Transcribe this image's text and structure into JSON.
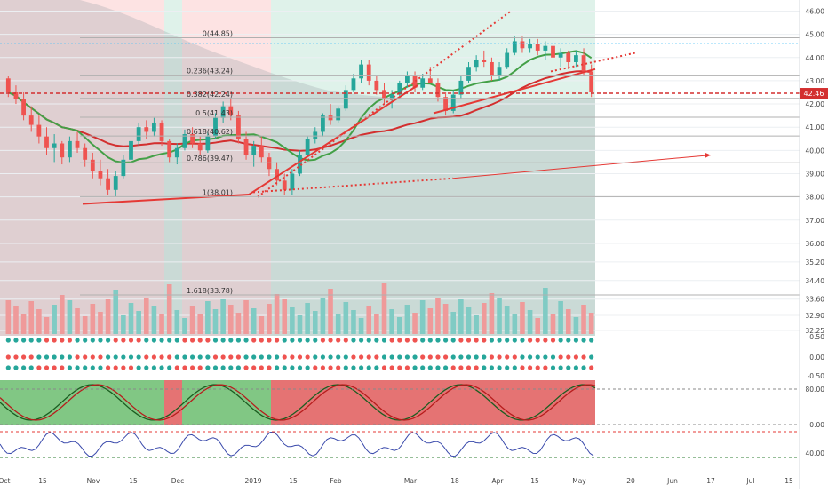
{
  "chart_data": {
    "type": "candlestick",
    "price_axis": {
      "ticks": [
        "46.00",
        "45.00",
        "44.00",
        "43.00",
        "42.00",
        "41.00",
        "40.00",
        "39.00",
        "38.00",
        "37.00",
        "36.00",
        "35.20",
        "34.40",
        "33.60",
        "32.90",
        "32.25"
      ],
      "last_price": "42.46",
      "last_price_value": 42.46,
      "ylim": [
        32.25,
        46.4
      ]
    },
    "time_axis": {
      "labels": [
        "Oct",
        "15",
        "Nov",
        "15",
        "Dec",
        "2019",
        "15",
        "Feb",
        "Mar",
        "18",
        "Apr",
        "15",
        "May",
        "20",
        "Jun",
        "17",
        "Jul",
        "15"
      ]
    },
    "macd_axis": {
      "ticks": [
        "0.50",
        "0.00",
        "-0.50"
      ]
    },
    "stoch_axis": {
      "ticks": [
        "80.00",
        "0.00"
      ]
    },
    "rsi_axis": {
      "ticks": [
        "40.00"
      ]
    },
    "fib_levels": [
      {
        "label": "0(44.85)",
        "value": 44.85
      },
      {
        "label": "0.236(43.24)",
        "value": 43.24
      },
      {
        "label": "0.382(42.24)",
        "value": 42.24
      },
      {
        "label": "0.5(41.43)",
        "value": 41.43
      },
      {
        "label": "0.618(40.62)",
        "value": 40.62
      },
      {
        "label": "0.786(39.47)",
        "value": 39.47
      },
      {
        "label": "1(38.01)",
        "value": 38.01
      },
      {
        "label": "1.618(33.78)",
        "value": 33.78
      }
    ],
    "candles": [
      [
        43.1,
        43.2,
        42.3,
        42.5
      ],
      [
        42.5,
        42.8,
        42.0,
        42.2
      ],
      [
        42.2,
        42.5,
        41.3,
        41.5
      ],
      [
        41.5,
        41.9,
        40.8,
        41.1
      ],
      [
        41.1,
        41.5,
        40.3,
        40.6
      ],
      [
        40.6,
        41.0,
        39.8,
        40.1
      ],
      [
        40.1,
        40.7,
        39.5,
        40.3
      ],
      [
        40.3,
        40.4,
        39.4,
        39.7
      ],
      [
        39.7,
        40.6,
        39.5,
        40.4
      ],
      [
        40.4,
        40.8,
        39.9,
        40.1
      ],
      [
        40.1,
        40.3,
        39.3,
        39.6
      ],
      [
        39.6,
        39.9,
        38.8,
        39.1
      ],
      [
        39.1,
        39.6,
        38.5,
        38.8
      ],
      [
        38.8,
        39.2,
        38.1,
        38.3
      ],
      [
        38.3,
        39.1,
        38.0,
        38.9
      ],
      [
        38.9,
        39.8,
        38.8,
        39.6
      ],
      [
        39.6,
        40.6,
        39.5,
        40.4
      ],
      [
        40.4,
        41.2,
        40.2,
        41.0
      ],
      [
        41.0,
        41.3,
        40.5,
        40.8
      ],
      [
        40.8,
        41.4,
        40.6,
        41.2
      ],
      [
        41.2,
        41.3,
        40.2,
        40.4
      ],
      [
        40.4,
        40.5,
        39.5,
        39.7
      ],
      [
        39.7,
        40.3,
        39.4,
        40.1
      ],
      [
        40.1,
        40.9,
        40.0,
        40.7
      ],
      [
        40.7,
        41.0,
        40.1,
        40.3
      ],
      [
        40.3,
        40.6,
        39.8,
        40.0
      ],
      [
        40.0,
        40.8,
        39.9,
        40.6
      ],
      [
        40.6,
        41.6,
        40.5,
        41.4
      ],
      [
        41.4,
        42.1,
        41.2,
        41.9
      ],
      [
        41.9,
        42.2,
        41.3,
        41.5
      ],
      [
        41.5,
        41.7,
        40.3,
        40.5
      ],
      [
        40.5,
        40.8,
        39.6,
        39.8
      ],
      [
        39.8,
        40.4,
        39.3,
        40.2
      ],
      [
        40.2,
        40.6,
        39.5,
        39.7
      ],
      [
        39.7,
        39.9,
        38.9,
        39.2
      ],
      [
        39.2,
        39.5,
        38.5,
        38.7
      ],
      [
        38.7,
        39.0,
        38.1,
        38.3
      ],
      [
        38.3,
        39.2,
        38.1,
        39.0
      ],
      [
        39.0,
        40.0,
        38.9,
        39.8
      ],
      [
        39.8,
        40.6,
        39.7,
        40.5
      ],
      [
        40.5,
        41.0,
        40.3,
        40.8
      ],
      [
        40.8,
        41.6,
        40.6,
        41.5
      ],
      [
        41.5,
        42.0,
        41.1,
        41.3
      ],
      [
        41.3,
        41.9,
        41.2,
        41.8
      ],
      [
        41.8,
        42.8,
        41.7,
        42.6
      ],
      [
        42.6,
        43.3,
        42.5,
        43.1
      ],
      [
        43.1,
        43.9,
        42.9,
        43.7
      ],
      [
        43.7,
        43.9,
        42.8,
        43.0
      ],
      [
        43.0,
        43.2,
        42.4,
        42.6
      ],
      [
        42.6,
        42.9,
        42.0,
        42.2
      ],
      [
        42.2,
        42.6,
        41.8,
        42.4
      ],
      [
        42.4,
        43.0,
        42.2,
        42.9
      ],
      [
        42.9,
        43.4,
        42.7,
        43.2
      ],
      [
        43.2,
        43.4,
        42.5,
        42.7
      ],
      [
        42.7,
        43.3,
        42.6,
        43.1
      ],
      [
        43.1,
        43.6,
        42.9,
        42.9
      ],
      [
        42.9,
        43.1,
        42.1,
        42.3
      ],
      [
        42.3,
        42.5,
        41.5,
        41.7
      ],
      [
        41.7,
        42.6,
        41.6,
        42.4
      ],
      [
        42.4,
        43.2,
        42.2,
        43.0
      ],
      [
        43.0,
        43.8,
        42.9,
        43.6
      ],
      [
        43.6,
        44.1,
        43.4,
        43.9
      ],
      [
        43.9,
        44.3,
        43.6,
        43.8
      ],
      [
        43.8,
        44.0,
        43.0,
        43.2
      ],
      [
        43.2,
        43.8,
        43.0,
        43.6
      ],
      [
        43.6,
        44.4,
        43.5,
        44.2
      ],
      [
        44.2,
        44.9,
        44.1,
        44.7
      ],
      [
        44.7,
        44.9,
        44.2,
        44.4
      ],
      [
        44.4,
        44.8,
        44.2,
        44.6
      ],
      [
        44.6,
        44.8,
        44.1,
        44.3
      ],
      [
        44.3,
        44.7,
        43.9,
        44.5
      ],
      [
        44.5,
        44.6,
        43.9,
        44.0
      ],
      [
        44.0,
        44.4,
        43.6,
        44.2
      ],
      [
        44.2,
        44.3,
        43.5,
        43.8
      ],
      [
        43.8,
        44.3,
        43.6,
        44.1
      ],
      [
        44.1,
        44.4,
        43.2,
        43.4
      ],
      [
        43.4,
        43.7,
        42.3,
        42.5
      ]
    ]
  }
}
